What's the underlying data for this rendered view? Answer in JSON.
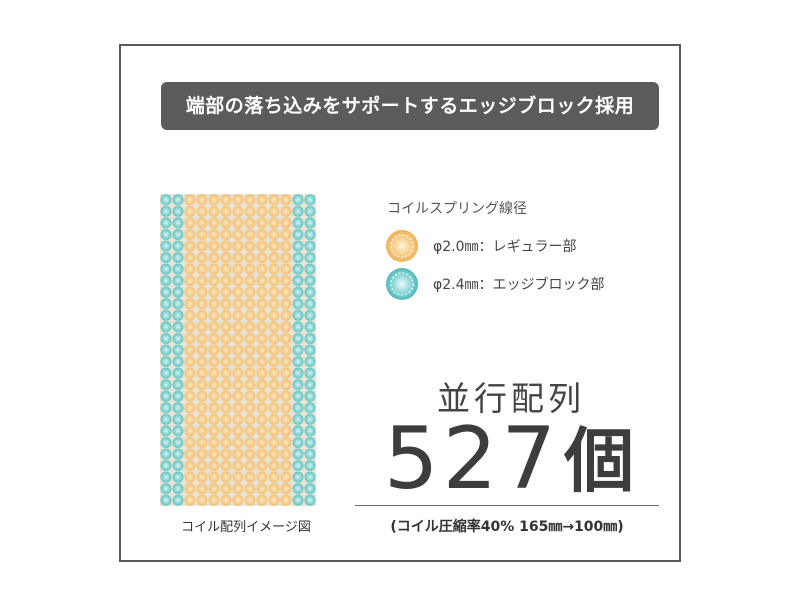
{
  "banner": {
    "title": "端部の落ち込みをサポートするエッジブロック採用"
  },
  "coil_image": {
    "caption": "コイル配列イメージ図",
    "columns_edge_left": 2,
    "columns_center": 9,
    "columns_edge_right": 2,
    "rows": 27,
    "colors": {
      "edge": "#5fc2c2",
      "edge_core": "#d8f3f2",
      "regular": "#f2bf73",
      "regular_core": "#fbe7c2"
    }
  },
  "legend": {
    "title": "コイルスプリング線径",
    "items": [
      {
        "swatch": "regular",
        "label": "φ2.0㎜：レギュラー部"
      },
      {
        "swatch": "edge",
        "label": "φ2.4㎜：エッジブロック部"
      }
    ]
  },
  "count": {
    "heading": "並行配列",
    "number": "527",
    "unit": "個",
    "note": "(コイル圧縮率40% 165㎜→100㎜)"
  }
}
